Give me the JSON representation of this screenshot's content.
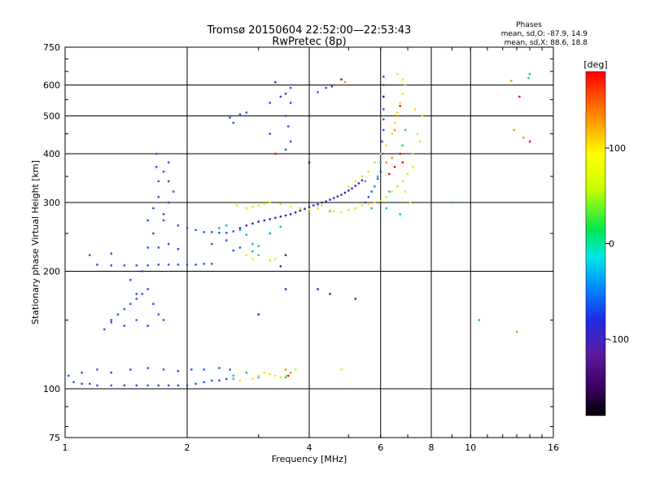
{
  "chart_data": {
    "type": "scatter",
    "title": "Tromsø 20150604 22:52:00—22:53:43",
    "subtitle": "RwPretec (8p)",
    "xlabel": "Frequency [MHz]",
    "ylabel": "Stationary phase Virtual Height [km]",
    "xscale": "log",
    "yscale": "log",
    "xlim": [
      1,
      16
    ],
    "ylim": [
      75,
      750
    ],
    "xticks": [
      1,
      2,
      4,
      6,
      8,
      10,
      16
    ],
    "yticks": [
      75,
      100,
      200,
      300,
      400,
      500,
      600,
      750
    ],
    "grid_x": [
      2,
      4,
      6,
      8,
      10
    ],
    "grid_y": [
      100,
      200,
      300,
      400,
      500,
      600
    ],
    "grid": true,
    "phases_box": {
      "title": "Phases",
      "line_o": "mean, sd,O: -87.9, 14.9",
      "line_x": "mean, sd,X: 88.6, 18.8"
    },
    "colorbar": {
      "label": "[deg]",
      "range": [
        -180,
        180
      ],
      "ticks": [
        100,
        0,
        -100
      ],
      "colormap": "rainbow (black-purple-blue-cyan-green-yellow-orange-red)"
    },
    "series": [
      {
        "name": "",
        "phase": -95,
        "color": "#1e50e6",
        "points": [
          [
            1.02,
            108
          ],
          [
            1.05,
            104
          ],
          [
            1.1,
            103
          ],
          [
            1.15,
            103
          ],
          [
            1.2,
            102
          ],
          [
            1.3,
            102
          ],
          [
            1.4,
            102
          ],
          [
            1.5,
            102
          ],
          [
            1.6,
            102
          ],
          [
            1.7,
            102
          ],
          [
            1.8,
            102
          ],
          [
            1.9,
            102
          ],
          [
            2.0,
            102
          ],
          [
            2.1,
            103
          ],
          [
            2.2,
            104
          ],
          [
            2.3,
            105
          ],
          [
            2.4,
            105
          ],
          [
            2.5,
            106
          ],
          [
            1.1,
            110
          ],
          [
            1.2,
            112
          ],
          [
            1.3,
            110
          ],
          [
            1.45,
            112
          ],
          [
            1.6,
            113
          ],
          [
            1.75,
            112
          ],
          [
            1.9,
            111
          ],
          [
            2.05,
            112
          ],
          [
            2.2,
            112
          ],
          [
            2.4,
            113
          ],
          [
            2.55,
            112
          ],
          [
            1.25,
            142
          ],
          [
            1.3,
            148
          ],
          [
            1.35,
            155
          ],
          [
            1.4,
            160
          ],
          [
            1.45,
            165
          ],
          [
            1.5,
            170
          ],
          [
            1.55,
            175
          ],
          [
            1.6,
            180
          ],
          [
            1.65,
            165
          ],
          [
            1.7,
            155
          ],
          [
            1.75,
            150
          ],
          [
            1.3,
            150
          ],
          [
            1.4,
            145
          ],
          [
            1.5,
            150
          ],
          [
            1.6,
            145
          ],
          [
            1.5,
            175
          ],
          [
            1.45,
            190
          ],
          [
            1.55,
            200
          ],
          [
            1.2,
            208
          ],
          [
            1.3,
            207
          ],
          [
            1.4,
            207
          ],
          [
            1.5,
            207
          ],
          [
            1.6,
            207
          ],
          [
            1.7,
            208
          ],
          [
            1.8,
            208
          ],
          [
            1.9,
            208
          ],
          [
            2.0,
            208
          ],
          [
            2.1,
            208
          ],
          [
            2.2,
            209
          ],
          [
            2.3,
            209
          ],
          [
            1.15,
            220
          ],
          [
            1.3,
            222
          ],
          [
            1.6,
            230
          ],
          [
            1.65,
            250
          ],
          [
            1.6,
            270
          ],
          [
            1.65,
            290
          ],
          [
            1.7,
            310
          ],
          [
            1.7,
            340
          ],
          [
            1.68,
            370
          ],
          [
            1.68,
            400
          ],
          [
            1.75,
            280
          ],
          [
            1.8,
            300
          ],
          [
            1.85,
            320
          ],
          [
            1.8,
            340
          ],
          [
            1.75,
            360
          ],
          [
            1.8,
            380
          ],
          [
            1.75,
            270
          ],
          [
            1.9,
            262
          ],
          [
            2.0,
            258
          ],
          [
            2.1,
            255
          ],
          [
            2.2,
            252
          ],
          [
            2.3,
            252
          ],
          [
            2.4,
            251
          ],
          [
            2.5,
            251
          ],
          [
            2.6,
            253
          ],
          [
            1.7,
            230
          ],
          [
            1.8,
            235
          ],
          [
            1.9,
            228
          ],
          [
            2.3,
            235
          ],
          [
            2.5,
            240
          ],
          [
            2.6,
            226
          ],
          [
            2.7,
            230
          ],
          [
            2.55,
            495
          ],
          [
            2.7,
            505
          ],
          [
            2.8,
            510
          ],
          [
            2.6,
            480
          ],
          [
            3.2,
            540
          ],
          [
            3.5,
            570
          ],
          [
            3.6,
            590
          ],
          [
            3.4,
            560
          ],
          [
            3.5,
            500
          ],
          [
            3.55,
            470
          ],
          [
            3.6,
            430
          ],
          [
            3.5,
            410
          ],
          [
            3.6,
            540
          ],
          [
            3.2,
            450
          ],
          [
            4.2,
            575
          ],
          [
            4.4,
            590
          ],
          [
            4.55,
            595
          ],
          [
            4.7,
            600
          ],
          [
            5.5,
            300
          ],
          [
            5.6,
            310
          ],
          [
            5.7,
            320
          ],
          [
            5.8,
            330
          ],
          [
            5.9,
            345
          ],
          [
            6.0,
            360
          ],
          [
            6.0,
            380
          ],
          [
            6.05,
            400
          ],
          [
            6.05,
            430
          ],
          [
            6.1,
            460
          ],
          [
            6.1,
            490
          ],
          [
            6.1,
            520
          ],
          [
            6.1,
            560
          ],
          [
            6.1,
            600
          ],
          [
            6.1,
            630
          ]
        ]
      },
      {
        "name": "",
        "phase": -130,
        "color": "#3a1ab4",
        "points": [
          [
            2.7,
            258
          ],
          [
            2.8,
            262
          ],
          [
            2.9,
            265
          ],
          [
            3.0,
            268
          ],
          [
            3.1,
            270
          ],
          [
            3.2,
            272
          ],
          [
            3.3,
            274
          ],
          [
            3.4,
            276
          ],
          [
            3.5,
            278
          ],
          [
            3.6,
            280
          ],
          [
            3.7,
            283
          ],
          [
            3.8,
            286
          ],
          [
            3.9,
            289
          ],
          [
            4.0,
            292
          ],
          [
            4.1,
            295
          ],
          [
            4.2,
            297
          ],
          [
            4.3,
            300
          ],
          [
            4.4,
            302
          ],
          [
            4.5,
            305
          ],
          [
            4.6,
            308
          ],
          [
            4.7,
            311
          ],
          [
            4.8,
            314
          ],
          [
            4.9,
            318
          ],
          [
            5.0,
            322
          ],
          [
            5.1,
            326
          ],
          [
            5.2,
            331
          ],
          [
            5.3,
            336
          ],
          [
            5.4,
            342
          ],
          [
            3.5,
            220
          ],
          [
            3.0,
            155
          ],
          [
            3.5,
            180
          ],
          [
            4.2,
            180
          ],
          [
            4.5,
            175
          ],
          [
            5.2,
            170
          ],
          [
            4.0,
            380
          ],
          [
            3.3,
            610
          ],
          [
            4.8,
            620
          ],
          [
            3.4,
            206
          ],
          [
            6.1,
            560
          ]
        ]
      },
      {
        "name": "",
        "phase": -40,
        "color": "#00b4e6",
        "points": [
          [
            2.6,
            108
          ],
          [
            2.8,
            110
          ],
          [
            3.0,
            107
          ],
          [
            2.4,
            258
          ],
          [
            2.5,
            262
          ],
          [
            2.7,
            255
          ],
          [
            2.8,
            248
          ],
          [
            3.2,
            250
          ],
          [
            3.4,
            260
          ],
          [
            2.9,
            235
          ],
          [
            3.0,
            232
          ],
          [
            5.8,
            330
          ],
          [
            5.9,
            350
          ],
          [
            5.5,
            340
          ],
          [
            6.7,
            280
          ],
          [
            6.3,
            320
          ],
          [
            4.5,
            285
          ],
          [
            14.0,
            640
          ],
          [
            6.0,
            380
          ],
          [
            9.0,
            300
          ],
          [
            10.5,
            150
          ],
          [
            3.2,
            250
          ]
        ]
      },
      {
        "name": "",
        "phase": 40,
        "color": "#28c864",
        "points": [
          [
            2.6,
            106
          ],
          [
            2.8,
            110
          ],
          [
            3.5,
            107
          ],
          [
            3.0,
            220
          ],
          [
            2.9,
            225
          ],
          [
            5.7,
            290
          ],
          [
            6.2,
            290
          ],
          [
            6.4,
            300
          ],
          [
            6.6,
            330
          ],
          [
            6.8,
            420
          ],
          [
            7.0,
            500
          ],
          [
            6.9,
            460
          ],
          [
            13.9,
            625
          ]
        ]
      },
      {
        "name": "",
        "phase": 105,
        "color": "#e6e600",
        "points": [
          [
            2.7,
            105
          ],
          [
            2.9,
            106
          ],
          [
            3.0,
            108
          ],
          [
            3.1,
            110
          ],
          [
            3.2,
            109
          ],
          [
            3.3,
            108
          ],
          [
            3.4,
            107
          ],
          [
            3.5,
            108
          ],
          [
            3.6,
            110
          ],
          [
            3.7,
            112
          ],
          [
            3.2,
            213
          ],
          [
            3.3,
            215
          ],
          [
            2.8,
            220
          ],
          [
            2.9,
            215
          ],
          [
            4.8,
            112
          ],
          [
            2.65,
            295
          ],
          [
            2.8,
            290
          ],
          [
            2.9,
            292
          ],
          [
            3.0,
            295
          ],
          [
            3.1,
            298
          ],
          [
            3.2,
            300
          ],
          [
            3.4,
            297
          ],
          [
            3.6,
            293
          ],
          [
            3.8,
            290
          ],
          [
            4.0,
            288
          ],
          [
            4.2,
            290
          ],
          [
            4.3,
            295
          ],
          [
            4.5,
            287
          ],
          [
            4.6,
            285
          ],
          [
            4.8,
            283
          ],
          [
            5.0,
            287
          ],
          [
            5.2,
            290
          ],
          [
            5.4,
            295
          ],
          [
            5.6,
            298
          ],
          [
            5.8,
            300
          ],
          [
            6.0,
            303
          ],
          [
            6.2,
            310
          ],
          [
            6.4,
            320
          ],
          [
            6.6,
            330
          ],
          [
            6.8,
            340
          ],
          [
            7.0,
            355
          ],
          [
            7.2,
            370
          ],
          [
            5.0,
            330
          ],
          [
            5.2,
            340
          ],
          [
            5.4,
            350
          ],
          [
            5.6,
            360
          ],
          [
            5.8,
            380
          ],
          [
            6.0,
            400
          ],
          [
            6.2,
            420
          ],
          [
            6.4,
            450
          ],
          [
            6.5,
            480
          ],
          [
            6.6,
            510
          ],
          [
            6.7,
            540
          ],
          [
            6.8,
            570
          ],
          [
            6.9,
            600
          ],
          [
            6.6,
            640
          ],
          [
            6.8,
            620
          ],
          [
            7.2,
            400
          ],
          [
            7.4,
            450
          ],
          [
            7.6,
            500
          ],
          [
            7.3,
            520
          ],
          [
            7.5,
            430
          ],
          [
            7.1,
            300
          ],
          [
            6.9,
            320
          ]
        ]
      },
      {
        "name": "",
        "phase": 150,
        "color": "#ff8c00",
        "points": [
          [
            3.5,
            112
          ],
          [
            3.6,
            110
          ],
          [
            6.5,
            460
          ],
          [
            6.6,
            500
          ],
          [
            4.9,
            610
          ],
          [
            13.0,
            140
          ],
          [
            13.5,
            440
          ],
          [
            12.8,
            460
          ],
          [
            6.2,
            380
          ],
          [
            6.4,
            390
          ],
          [
            4.7,
            600
          ],
          [
            12.6,
            615
          ]
        ]
      },
      {
        "name": "",
        "phase": 175,
        "color": "#e60000",
        "points": [
          [
            3.55,
            108
          ],
          [
            6.5,
            370
          ],
          [
            6.3,
            355
          ],
          [
            6.7,
            530
          ],
          [
            14.0,
            430
          ],
          [
            13.2,
            560
          ],
          [
            3.3,
            400
          ],
          [
            6.7,
            400
          ],
          [
            6.8,
            380
          ]
        ]
      }
    ]
  }
}
